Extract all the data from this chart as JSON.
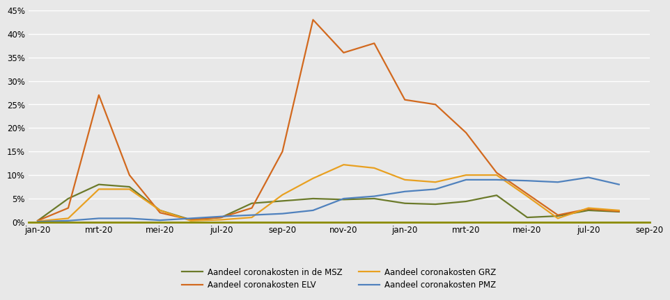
{
  "x_tick_labels": [
    "jan-20",
    "mrt-20",
    "mei-20",
    "jul-20",
    "sep-20",
    "nov-20",
    "jan-20",
    "mrt-20",
    "mei-20",
    "jul-20",
    "sep-20"
  ],
  "x_tick_positions": [
    0,
    2,
    4,
    6,
    8,
    10,
    12,
    14,
    16,
    18,
    20
  ],
  "MSZ": [
    0.003,
    0.05,
    0.08,
    0.075,
    0.025,
    0.005,
    0.01,
    0.04,
    0.045,
    0.05,
    0.048,
    0.05,
    0.04,
    0.038,
    0.044,
    0.057,
    0.01,
    0.013,
    0.025,
    0.022
  ],
  "ELV": [
    0.003,
    0.03,
    0.27,
    0.1,
    0.02,
    0.005,
    0.01,
    0.03,
    0.15,
    0.43,
    0.36,
    0.38,
    0.26,
    0.25,
    0.19,
    0.105,
    0.06,
    0.015,
    0.028,
    0.023
  ],
  "GRZ": [
    0.002,
    0.008,
    0.07,
    0.07,
    0.025,
    0.003,
    0.005,
    0.01,
    0.058,
    0.093,
    0.122,
    0.115,
    0.09,
    0.085,
    0.1,
    0.1,
    0.055,
    0.008,
    0.03,
    0.025
  ],
  "PMZ": [
    0.001,
    0.003,
    0.008,
    0.008,
    0.004,
    0.008,
    0.012,
    0.015,
    0.018,
    0.025,
    0.05,
    0.055,
    0.065,
    0.07,
    0.09,
    0.09,
    0.088,
    0.085,
    0.095,
    0.08
  ],
  "color_MSZ": "#6b7a2a",
  "color_ELV": "#d2691e",
  "color_GRZ": "#e8a020",
  "color_PMZ": "#4f81bd",
  "label_MSZ": "Aandeel coronakosten in de MSZ",
  "label_ELV": "Aandeel coronakosten ELV",
  "label_GRZ": "Aandeel coronakosten GRZ",
  "label_PMZ": "Aandeel coronakosten PMZ",
  "background_color": "#e8e8e8",
  "plot_bg_color": "#e8e8e8",
  "grid_color": "#ffffff",
  "spine_bottom_color": "#8b8b00",
  "ylim": [
    0.0,
    0.45
  ],
  "yticks": [
    0.0,
    0.05,
    0.1,
    0.15,
    0.2,
    0.25,
    0.3,
    0.35,
    0.4,
    0.45
  ],
  "linewidth": 1.6,
  "tick_fontsize": 8.5,
  "legend_fontsize": 8.5
}
